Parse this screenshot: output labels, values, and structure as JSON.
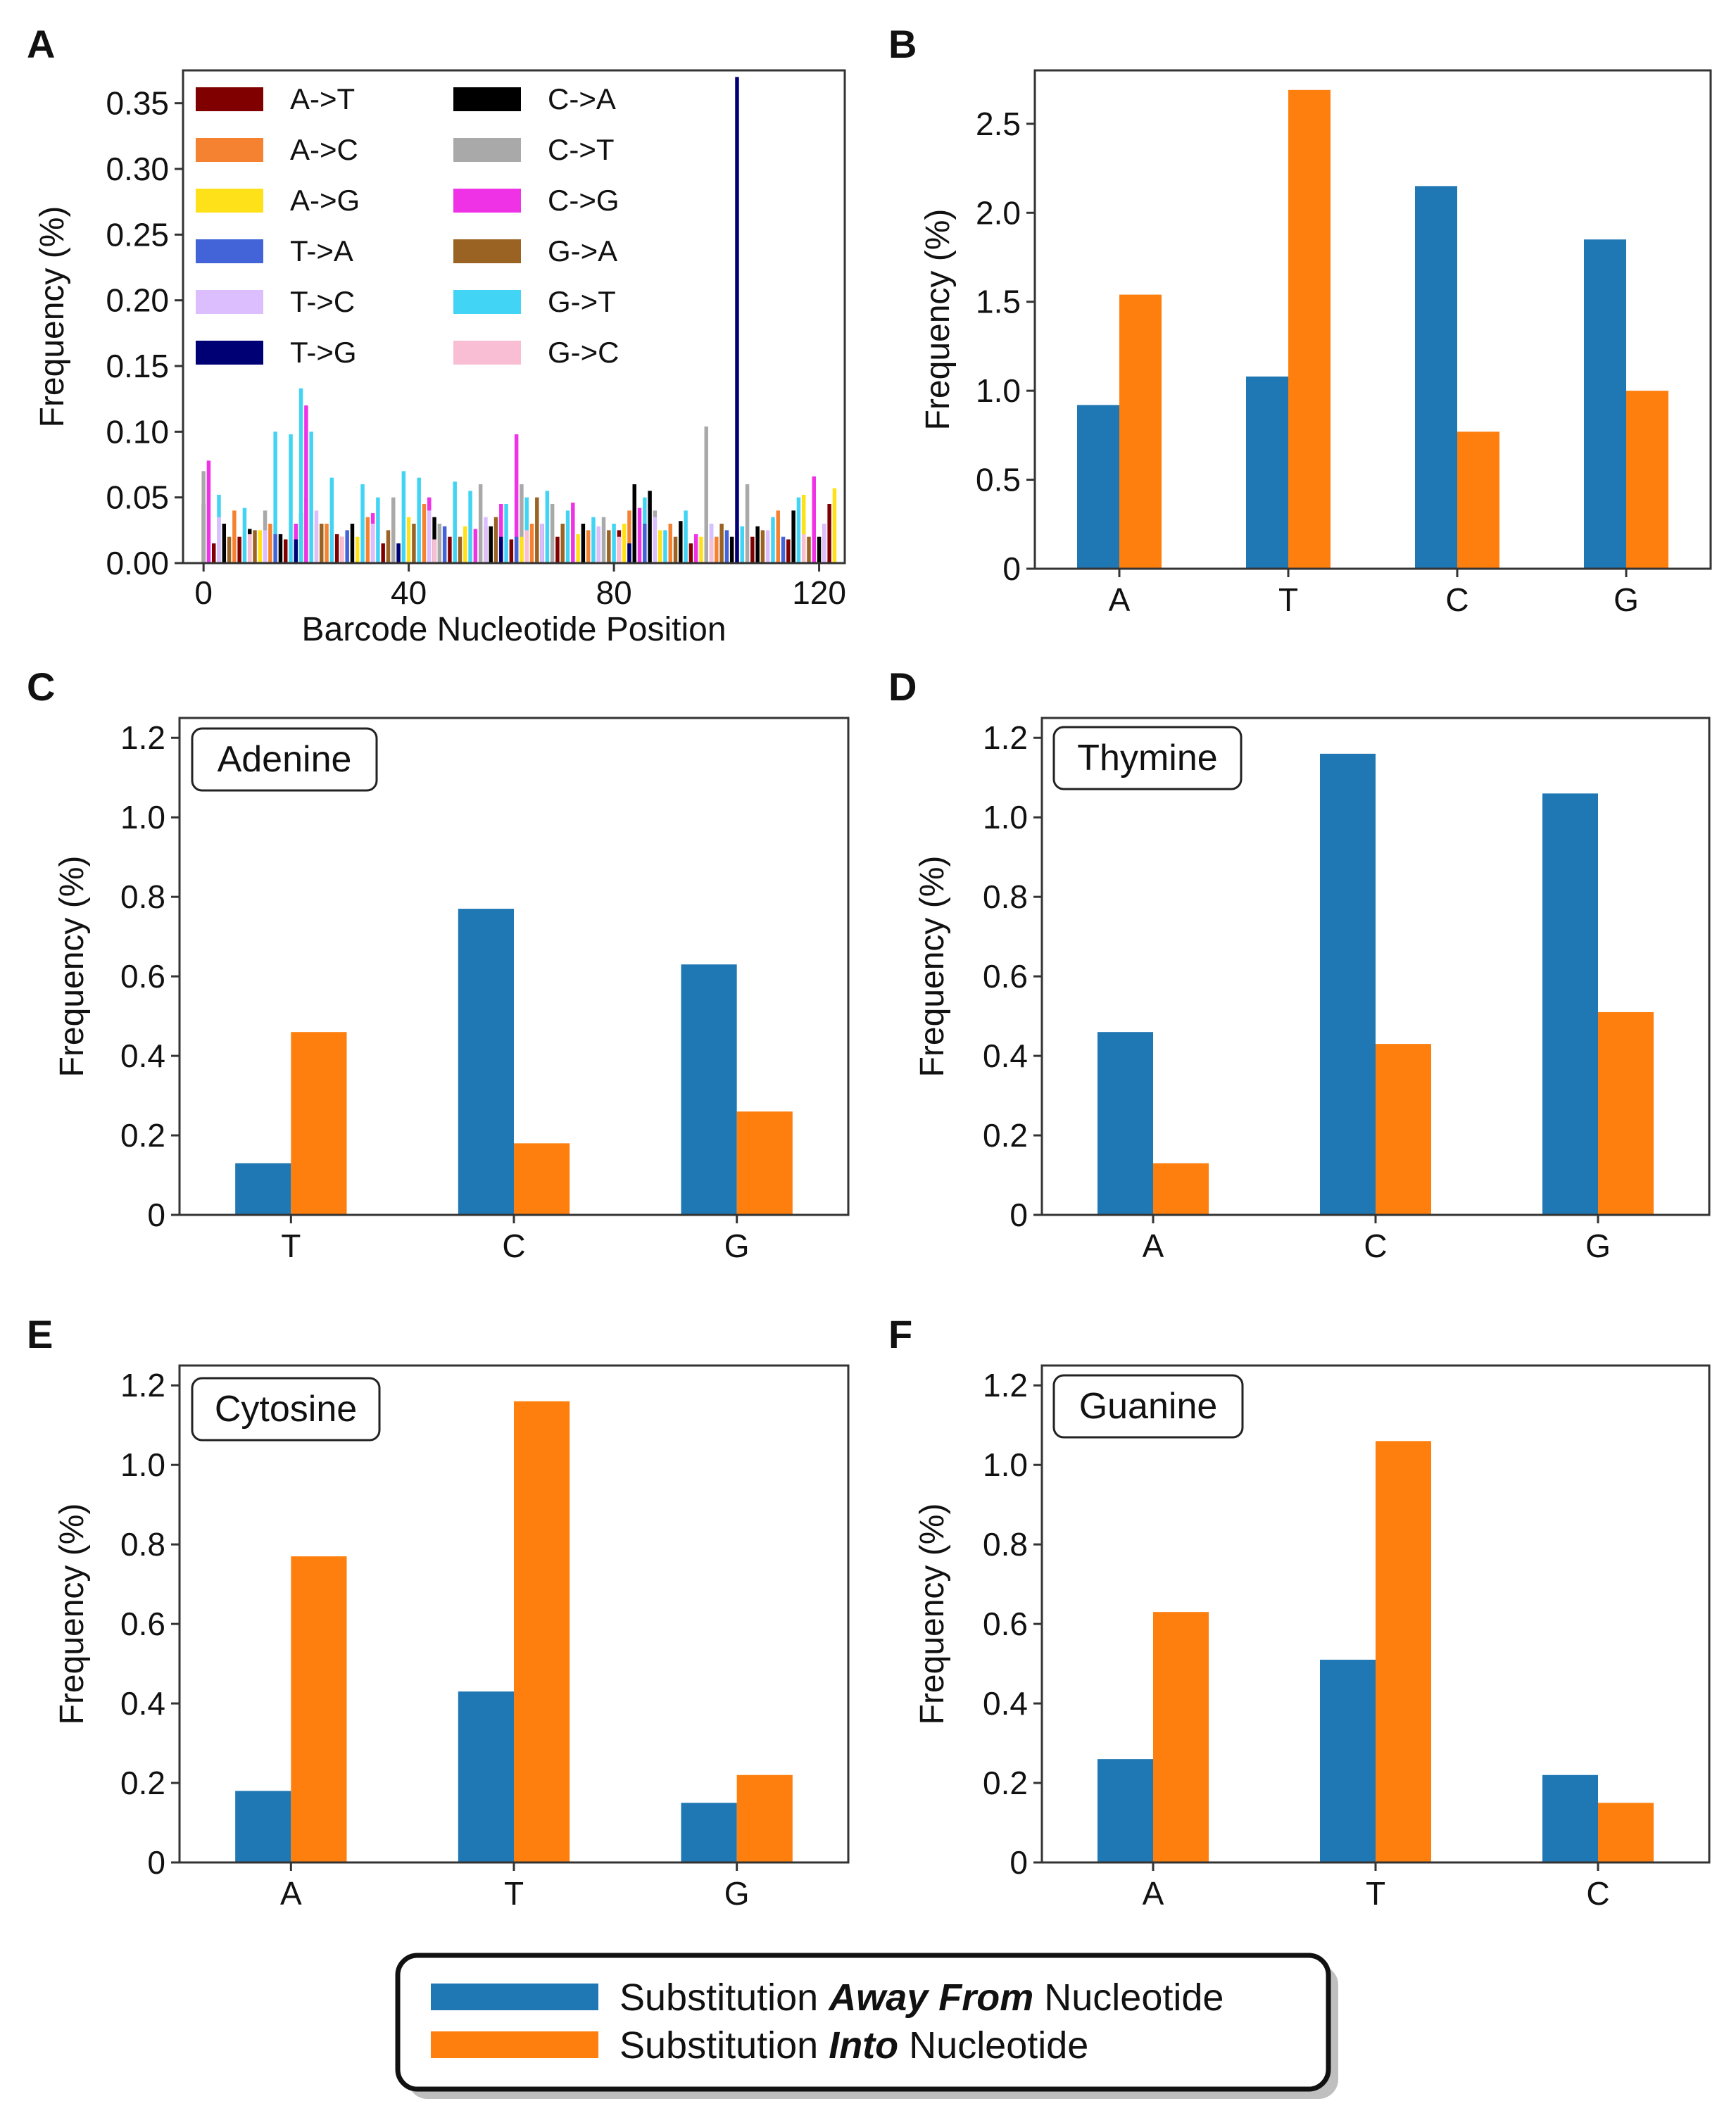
{
  "colors": {
    "away": "#1f77b4",
    "into": "#ff7f0e",
    "frame": "#333333"
  },
  "shared_legend": {
    "away_prefix": "Substitution ",
    "away_emph": "Away From",
    "away_suffix": " Nucleotide",
    "into_prefix": "Substitution ",
    "into_emph": "Into",
    "into_suffix": " Nucleotide"
  },
  "chart_data": [
    {
      "id": "A",
      "type": "bar",
      "letter": "A",
      "xlabel": "Barcode Nucleotide Position",
      "ylabel": "Frequency (%)",
      "xlim": [
        -4,
        125
      ],
      "ylim": [
        0,
        0.375
      ],
      "xticks": [
        0,
        40,
        80,
        120
      ],
      "xtick_labels": [
        "0",
        "40",
        "80",
        "120"
      ],
      "yticks": [
        0,
        0.05,
        0.1,
        0.15,
        0.2,
        0.25,
        0.3,
        0.35
      ],
      "ytick_labels": [
        "0.00",
        "0.05",
        "0.10",
        "0.15",
        "0.20",
        "0.25",
        "0.30",
        "0.35"
      ],
      "legend": [
        {
          "label": "A->T",
          "color": "#800000"
        },
        {
          "label": "A->C",
          "color": "#f58231"
        },
        {
          "label": "A->G",
          "color": "#ffe119"
        },
        {
          "label": "T->A",
          "color": "#4363d8"
        },
        {
          "label": "T->C",
          "color": "#dcbeff"
        },
        {
          "label": "T->G",
          "color": "#000075"
        },
        {
          "label": "C->A",
          "color": "#000000"
        },
        {
          "label": "C->T",
          "color": "#a9a9a9"
        },
        {
          "label": "C->G",
          "color": "#f032e6"
        },
        {
          "label": "G->A",
          "color": "#9a6324"
        },
        {
          "label": "G->T",
          "color": "#42d4f4"
        },
        {
          "label": "G->C",
          "color": "#fabed4"
        }
      ],
      "series": [
        {
          "name": "C->A",
          "x": [
            0,
            4,
            9,
            15,
            19,
            29,
            45,
            56,
            66,
            74,
            84,
            87,
            93,
            103,
            108,
            115,
            120
          ],
          "values": [
            0.045,
            0.03,
            0.026,
            0.022,
            0.038,
            0.03,
            0.035,
            0.028,
            0.03,
            0.03,
            0.06,
            0.055,
            0.032,
            0.02,
            0.028,
            0.04,
            0.02
          ]
        },
        {
          "name": "C->T",
          "x": [
            0,
            12,
            20,
            37,
            46,
            54,
            62,
            68,
            78,
            88,
            98,
            106,
            117
          ],
          "values": [
            0.07,
            0.04,
            0.05,
            0.05,
            0.03,
            0.06,
            0.06,
            0.045,
            0.035,
            0.04,
            0.104,
            0.06,
            0.035
          ]
        },
        {
          "name": "C->G",
          "x": [
            1,
            18,
            20,
            33,
            44,
            53,
            58,
            61,
            72,
            85,
            96,
            104,
            119
          ],
          "values": [
            0.078,
            0.03,
            0.12,
            0.038,
            0.05,
            0.026,
            0.045,
            0.098,
            0.046,
            0.042,
            0.022,
            0.025,
            0.066
          ]
        },
        {
          "name": "G->T",
          "x": [
            3,
            8,
            14,
            17,
            19,
            21,
            25,
            31,
            34,
            39,
            42,
            49,
            52,
            59,
            63,
            67,
            71,
            76,
            80,
            86,
            90,
            94,
            99,
            105,
            111,
            116
          ],
          "values": [
            0.052,
            0.042,
            0.1,
            0.098,
            0.133,
            0.1,
            0.065,
            0.06,
            0.05,
            0.07,
            0.065,
            0.062,
            0.055,
            0.045,
            0.05,
            0.055,
            0.04,
            0.035,
            0.03,
            0.05,
            0.025,
            0.04,
            0.03,
            0.028,
            0.035,
            0.05
          ]
        },
        {
          "name": "G->A",
          "x": [
            5,
            10,
            23,
            27,
            36,
            41,
            50,
            57,
            65,
            70,
            79,
            92,
            101,
            109,
            118
          ],
          "values": [
            0.02,
            0.025,
            0.03,
            0.02,
            0.025,
            0.03,
            0.02,
            0.035,
            0.05,
            0.03,
            0.025,
            0.02,
            0.03,
            0.025,
            0.02
          ]
        },
        {
          "name": "A->T",
          "x": [
            2,
            7,
            16,
            26,
            35,
            48,
            60,
            69,
            81,
            95,
            107,
            114,
            122
          ],
          "values": [
            0.015,
            0.02,
            0.018,
            0.022,
            0.015,
            0.02,
            0.018,
            0.02,
            0.025,
            0.015,
            0.02,
            0.018,
            0.045
          ]
        },
        {
          "name": "A->C",
          "x": [
            6,
            13,
            24,
            32,
            43,
            55,
            64,
            75,
            83,
            91,
            100,
            112,
            121
          ],
          "values": [
            0.04,
            0.03,
            0.03,
            0.035,
            0.045,
            0.028,
            0.03,
            0.025,
            0.04,
            0.03,
            0.02,
            0.04,
            0.03
          ]
        },
        {
          "name": "A->G",
          "x": [
            11,
            22,
            30,
            40,
            51,
            62,
            73,
            82,
            89,
            97,
            110,
            117,
            123
          ],
          "values": [
            0.025,
            0.03,
            0.02,
            0.035,
            0.028,
            0.02,
            0.022,
            0.03,
            0.025,
            0.02,
            0.022,
            0.052,
            0.057
          ]
        },
        {
          "name": "T->A",
          "x": [
            14,
            28,
            47,
            61,
            77,
            86,
            102,
            113
          ],
          "values": [
            0.022,
            0.025,
            0.028,
            0.02,
            0.022,
            0.03,
            0.025,
            0.02
          ]
        },
        {
          "name": "T->C",
          "x": [
            3,
            12,
            22,
            33,
            44,
            55,
            66,
            77,
            88,
            99,
            110,
            121
          ],
          "values": [
            0.035,
            0.025,
            0.04,
            0.03,
            0.04,
            0.035,
            0.03,
            0.028,
            0.035,
            0.03,
            0.025,
            0.03
          ]
        },
        {
          "name": "T->G",
          "x": [
            18,
            38,
            58,
            83,
            104
          ],
          "values": [
            0.018,
            0.015,
            0.02,
            0.015,
            0.37
          ]
        },
        {
          "name": "G->C",
          "x": [
            9,
            27,
            45,
            63,
            81,
            99,
            117
          ],
          "values": [
            0.022,
            0.02,
            0.018,
            0.025,
            0.02,
            0.018,
            0.022
          ]
        }
      ]
    },
    {
      "id": "B",
      "type": "bar",
      "letter": "B",
      "ylabel": "Frequency (%)",
      "categories": [
        "A",
        "T",
        "C",
        "G"
      ],
      "ylim": [
        0,
        2.8
      ],
      "yticks": [
        0,
        0.5,
        1.0,
        1.5,
        2.0,
        2.5
      ],
      "ytick_labels": [
        "0",
        "0.5",
        "1.0",
        "1.5",
        "2.0",
        "2.5"
      ],
      "series": [
        {
          "name": "Substitution Away From Nucleotide",
          "values": [
            0.92,
            1.08,
            2.15,
            1.85
          ]
        },
        {
          "name": "Substitution Into Nucleotide",
          "values": [
            1.54,
            2.69,
            0.77,
            1.0
          ]
        }
      ]
    },
    {
      "id": "C",
      "type": "bar",
      "letter": "C",
      "inset": "Adenine",
      "ylabel": "Frequency (%)",
      "categories": [
        "T",
        "C",
        "G"
      ],
      "ylim": [
        0,
        1.25
      ],
      "yticks": [
        0,
        0.2,
        0.4,
        0.6,
        0.8,
        1.0,
        1.2
      ],
      "ytick_labels": [
        "0",
        "0.2",
        "0.4",
        "0.6",
        "0.8",
        "1.0",
        "1.2"
      ],
      "series": [
        {
          "name": "Substitution Away From Nucleotide",
          "values": [
            0.13,
            0.77,
            0.63
          ]
        },
        {
          "name": "Substitution Into Nucleotide",
          "values": [
            0.46,
            0.18,
            0.26
          ]
        }
      ]
    },
    {
      "id": "D",
      "type": "bar",
      "letter": "D",
      "inset": "Thymine",
      "ylabel": "Frequency (%)",
      "categories": [
        "A",
        "C",
        "G"
      ],
      "ylim": [
        0,
        1.25
      ],
      "yticks": [
        0,
        0.2,
        0.4,
        0.6,
        0.8,
        1.0,
        1.2
      ],
      "ytick_labels": [
        "0",
        "0.2",
        "0.4",
        "0.6",
        "0.8",
        "1.0",
        "1.2"
      ],
      "series": [
        {
          "name": "Substitution Away From Nucleotide",
          "values": [
            0.46,
            1.16,
            1.06
          ]
        },
        {
          "name": "Substitution Into Nucleotide",
          "values": [
            0.13,
            0.43,
            0.51
          ]
        }
      ]
    },
    {
      "id": "E",
      "type": "bar",
      "letter": "E",
      "inset": "Cytosine",
      "ylabel": "Frequency (%)",
      "categories": [
        "A",
        "T",
        "G"
      ],
      "ylim": [
        0,
        1.25
      ],
      "yticks": [
        0,
        0.2,
        0.4,
        0.6,
        0.8,
        1.0,
        1.2
      ],
      "ytick_labels": [
        "0",
        "0.2",
        "0.4",
        "0.6",
        "0.8",
        "1.0",
        "1.2"
      ],
      "series": [
        {
          "name": "Substitution Away From Nucleotide",
          "values": [
            0.18,
            0.43,
            0.15
          ]
        },
        {
          "name": "Substitution Into Nucleotide",
          "values": [
            0.77,
            1.16,
            0.22
          ]
        }
      ]
    },
    {
      "id": "F",
      "type": "bar",
      "letter": "F",
      "inset": "Guanine",
      "ylabel": "Frequency (%)",
      "categories": [
        "A",
        "T",
        "C"
      ],
      "ylim": [
        0,
        1.25
      ],
      "yticks": [
        0,
        0.2,
        0.4,
        0.6,
        0.8,
        1.0,
        1.2
      ],
      "ytick_labels": [
        "0",
        "0.2",
        "0.4",
        "0.6",
        "0.8",
        "1.0",
        "1.2"
      ],
      "series": [
        {
          "name": "Substitution Away From Nucleotide",
          "values": [
            0.26,
            0.51,
            0.22
          ]
        },
        {
          "name": "Substitution Into Nucleotide",
          "values": [
            0.63,
            1.06,
            0.15
          ]
        }
      ]
    }
  ]
}
